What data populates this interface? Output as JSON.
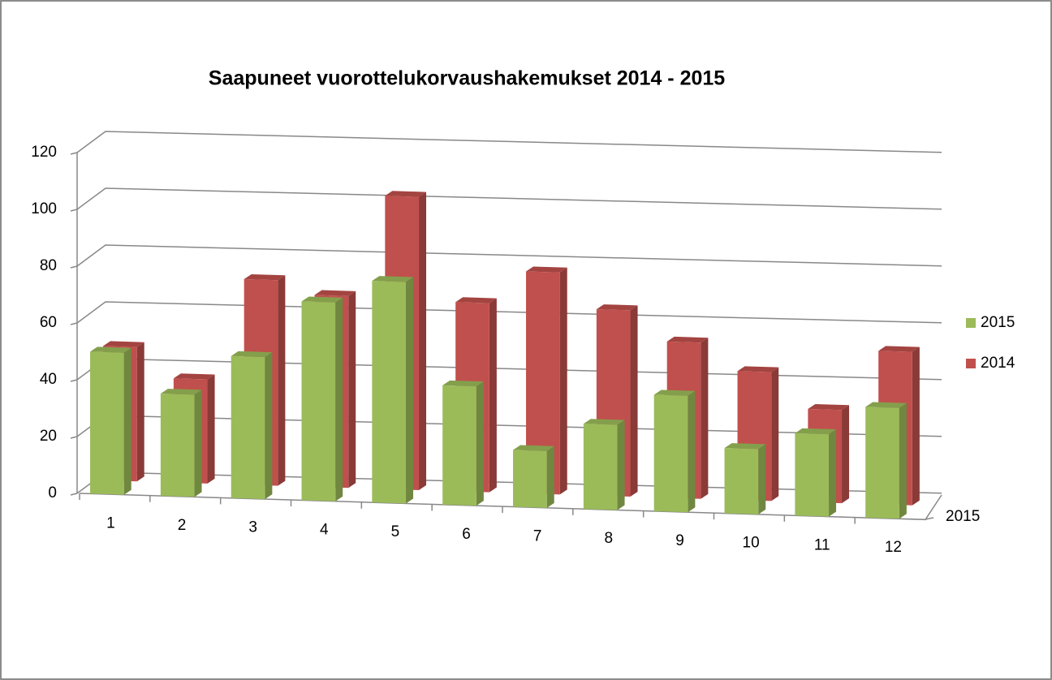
{
  "chart_data": {
    "type": "bar3d",
    "title": "Saapuneet vuorottelukorvaushakemukset 2014 - 2015",
    "categories": [
      "1",
      "2",
      "3",
      "4",
      "5",
      "6",
      "7",
      "8",
      "9",
      "10",
      "11",
      "12"
    ],
    "series": [
      {
        "name": "2015",
        "color": "#9bbb59",
        "values": [
          50,
          36,
          50,
          70,
          78,
          42,
          20,
          30,
          41,
          23,
          29,
          39
        ]
      },
      {
        "name": "2014",
        "color": "#c0504d",
        "values": [
          49,
          38,
          75,
          70,
          107,
          69,
          81,
          68,
          57,
          47,
          34,
          56
        ]
      }
    ],
    "depth_labels": [
      "2015"
    ],
    "ylim": [
      0,
      120
    ],
    "yticks": [
      0,
      20,
      40,
      60,
      80,
      100,
      120
    ],
    "grid": true,
    "legend": "right"
  }
}
